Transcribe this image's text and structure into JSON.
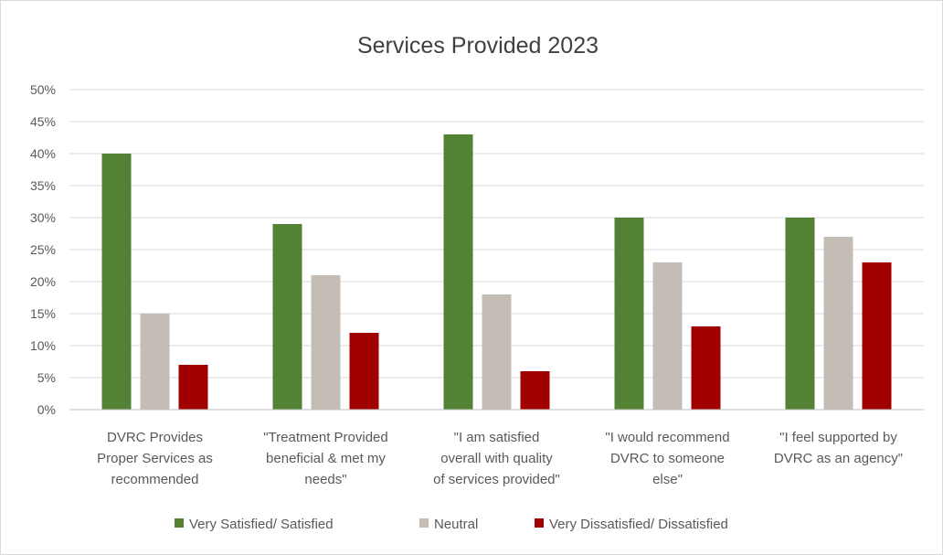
{
  "chart_data": {
    "type": "bar",
    "title": "Services Provided 2023",
    "xlabel": "",
    "ylabel": "",
    "ylim": [
      0,
      0.5
    ],
    "y_ticks": [
      {
        "value": 0,
        "label": "0%"
      },
      {
        "value": 0.05,
        "label": "5%"
      },
      {
        "value": 0.1,
        "label": "10%"
      },
      {
        "value": 0.15,
        "label": "15%"
      },
      {
        "value": 0.2,
        "label": "20%"
      },
      {
        "value": 0.25,
        "label": "25%"
      },
      {
        "value": 0.3,
        "label": "30%"
      },
      {
        "value": 0.35,
        "label": "35%"
      },
      {
        "value": 0.4,
        "label": "40%"
      },
      {
        "value": 0.45,
        "label": "45%"
      },
      {
        "value": 0.5,
        "label": "50%"
      }
    ],
    "grid": true,
    "legend_position": "bottom",
    "categories": [
      [
        "DVRC Provides",
        "Proper Services as",
        "recommended"
      ],
      [
        "\"Treatment Provided",
        "beneficial & met my",
        "needs\""
      ],
      [
        "\"I am satisfied",
        "overall with quality",
        "of services provided\""
      ],
      [
        "\"I would recommend",
        "DVRC to someone",
        "else\""
      ],
      [
        "\"I feel supported by",
        "DVRC as an agency\""
      ]
    ],
    "series": [
      {
        "name": "Very Satisfied/ Satisfied",
        "color": "#548235",
        "values": [
          0.4,
          0.29,
          0.43,
          0.3,
          0.3
        ]
      },
      {
        "name": "Neutral",
        "color": "#c4bdb6",
        "values": [
          0.15,
          0.21,
          0.18,
          0.23,
          0.27
        ]
      },
      {
        "name": "Very Dissatisfied/ Dissatisfied",
        "color": "#a00000",
        "values": [
          0.07,
          0.12,
          0.06,
          0.13,
          0.23
        ]
      }
    ]
  }
}
